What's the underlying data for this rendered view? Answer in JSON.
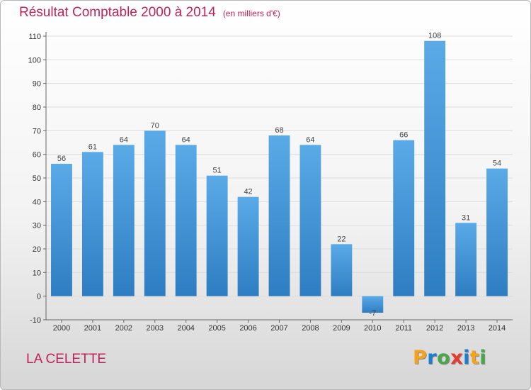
{
  "header": {
    "title": "Résultat Comptable 2000 à 2014",
    "subtitle": "(en milliers d'€)"
  },
  "footer": {
    "commune": "LA CELETTE",
    "logo_text": "Proxiti",
    "logo_colors": [
      "#f5a31a",
      "#1a7fd0",
      "#47a84a",
      "#e63b2e",
      "#1a7fd0",
      "#f5a31a",
      "#47a84a"
    ]
  },
  "colors": {
    "title": "#c0235a",
    "bar_light": "#5aaae8",
    "bar_dark": "#2e7dc2",
    "grid": "#dddddd"
  },
  "chart_data": {
    "type": "bar",
    "title": "Résultat Comptable 2000 à 2014",
    "subtitle": "(en milliers d'€)",
    "categories": [
      "2000",
      "2001",
      "2002",
      "2003",
      "2004",
      "2005",
      "2006",
      "2007",
      "2008",
      "2009",
      "2010",
      "2011",
      "2012",
      "2013",
      "2014"
    ],
    "values": [
      56,
      61,
      64,
      70,
      64,
      51,
      42,
      68,
      64,
      22,
      -7,
      66,
      108,
      31,
      54
    ],
    "data_labels": [
      "56",
      "61",
      "64",
      "70",
      "64",
      "51",
      "42",
      "68",
      "64",
      "22",
      "-7",
      "66",
      "108",
      "31",
      "54"
    ],
    "yticks": [
      -10,
      0,
      10,
      20,
      30,
      40,
      50,
      60,
      70,
      80,
      90,
      100,
      110
    ],
    "ylim": [
      -10,
      110
    ],
    "grid": true,
    "legend": false
  }
}
